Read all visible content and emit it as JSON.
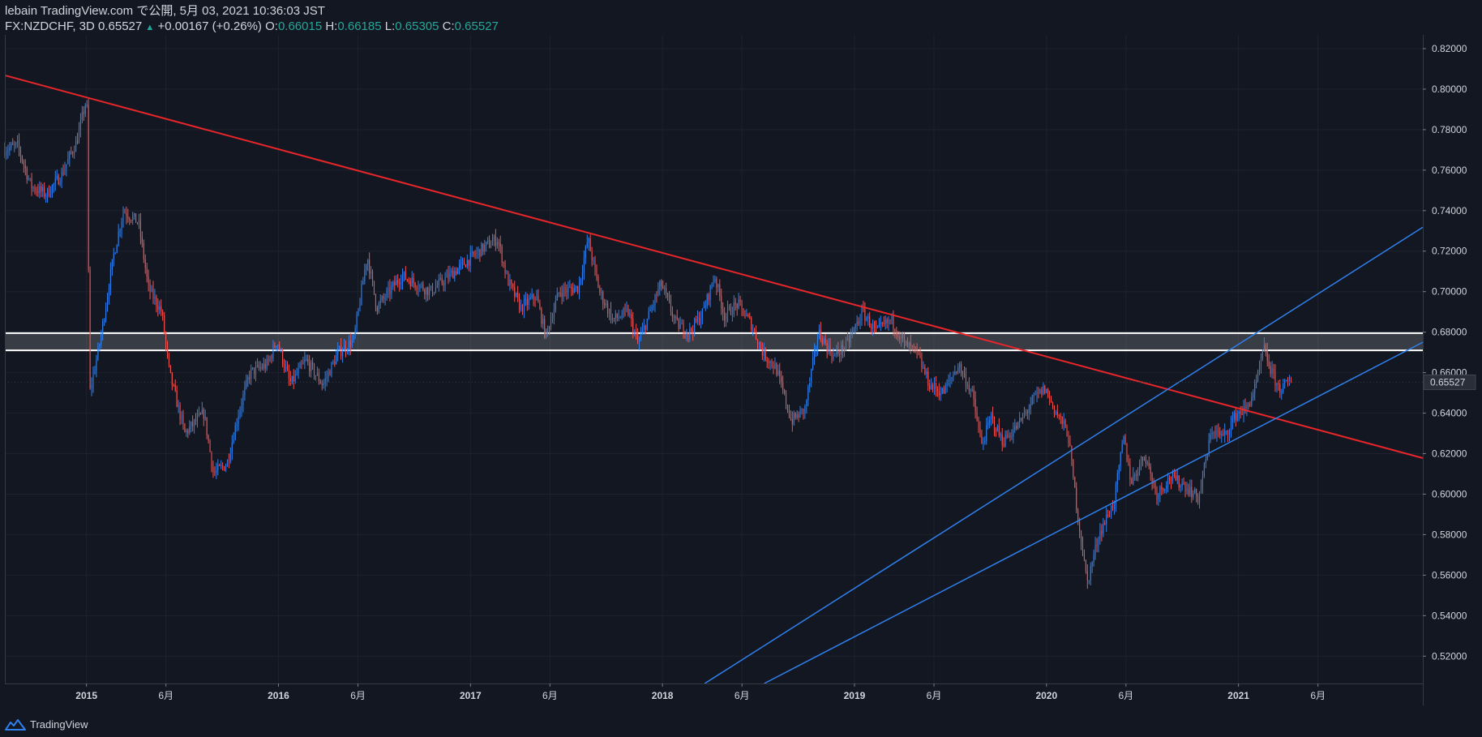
{
  "header": {
    "publish_line": "lebain TradingView.com で公開, 5月 03, 2021 10:36:03 JST",
    "symbol_tf": "FX:NZDCHF, 3D",
    "last": "0.65527",
    "change": "+0.00167 (+0.26%)",
    "o_label": "O:",
    "o_value": "0.66015",
    "h_label": "H:",
    "h_value": "0.66185",
    "l_label": "L:",
    "l_value": "0.65305",
    "c_label": "C:",
    "c_value": "0.65527"
  },
  "footer": {
    "brand": "TradingView"
  },
  "colors": {
    "background": "#131722",
    "up": "#2f80ed",
    "down": "#ef5350",
    "trendline": "#e8262a",
    "channel": "#2f80ed",
    "zone": "#ffffff",
    "grid": "#1e222d"
  },
  "chart_data": {
    "type": "candlestick",
    "y_ticks": [
      "0.82000",
      "0.80000",
      "0.78000",
      "0.76000",
      "0.74000",
      "0.72000",
      "0.70000",
      "0.68000",
      "0.66000",
      "0.64000",
      "0.62000",
      "0.60000",
      "0.58000",
      "0.56000",
      "0.54000",
      "0.52000"
    ],
    "x_ticks": [
      {
        "label": "2015",
        "t": 2015.0,
        "bold": true
      },
      {
        "label": "6月",
        "t": 2015.414
      },
      {
        "label": "2016",
        "t": 2016.0,
        "bold": true
      },
      {
        "label": "6月",
        "t": 2016.414
      },
      {
        "label": "2017",
        "t": 2017.0,
        "bold": true
      },
      {
        "label": "6月",
        "t": 2017.414
      },
      {
        "label": "2018",
        "t": 2018.0,
        "bold": true
      },
      {
        "label": "6月",
        "t": 2018.414
      },
      {
        "label": "2019",
        "t": 2019.0,
        "bold": true
      },
      {
        "label": "6月",
        "t": 2019.414
      },
      {
        "label": "2020",
        "t": 2020.0,
        "bold": true
      },
      {
        "label": "6月",
        "t": 2020.414
      },
      {
        "label": "2021",
        "t": 2021.0,
        "bold": true
      },
      {
        "label": "6月",
        "t": 2021.414
      }
    ],
    "x_range": [
      2014.575,
      2021.96
    ],
    "y_range": [
      0.5065,
      0.8268
    ],
    "last_price": {
      "value": 0.65527,
      "label": "0.65527"
    },
    "price_path": [
      [
        2014.575,
        0.77
      ],
      [
        2014.65,
        0.772
      ],
      [
        2014.72,
        0.752
      ],
      [
        2014.8,
        0.748
      ],
      [
        2014.88,
        0.758
      ],
      [
        2014.96,
        0.775
      ],
      [
        2015.01,
        0.796
      ],
      [
        2015.025,
        0.65
      ],
      [
        2015.08,
        0.676
      ],
      [
        2015.15,
        0.718
      ],
      [
        2015.2,
        0.74
      ],
      [
        2015.28,
        0.734
      ],
      [
        2015.33,
        0.702
      ],
      [
        2015.4,
        0.69
      ],
      [
        2015.44,
        0.66
      ],
      [
        2015.52,
        0.63
      ],
      [
        2015.62,
        0.64
      ],
      [
        2015.67,
        0.61
      ],
      [
        2015.74,
        0.615
      ],
      [
        2015.8,
        0.64
      ],
      [
        2015.86,
        0.66
      ],
      [
        2015.95,
        0.664
      ],
      [
        2016.0,
        0.676
      ],
      [
        2016.07,
        0.654
      ],
      [
        2016.15,
        0.666
      ],
      [
        2016.24,
        0.654
      ],
      [
        2016.32,
        0.67
      ],
      [
        2016.4,
        0.676
      ],
      [
        2016.47,
        0.718
      ],
      [
        2016.52,
        0.692
      ],
      [
        2016.65,
        0.708
      ],
      [
        2016.8,
        0.7
      ],
      [
        2016.95,
        0.712
      ],
      [
        2017.08,
        0.722
      ],
      [
        2017.15,
        0.726
      ],
      [
        2017.2,
        0.706
      ],
      [
        2017.27,
        0.692
      ],
      [
        2017.35,
        0.698
      ],
      [
        2017.4,
        0.678
      ],
      [
        2017.47,
        0.7
      ],
      [
        2017.57,
        0.702
      ],
      [
        2017.62,
        0.726
      ],
      [
        2017.68,
        0.7
      ],
      [
        2017.75,
        0.686
      ],
      [
        2017.83,
        0.69
      ],
      [
        2017.88,
        0.674
      ],
      [
        2018.0,
        0.704
      ],
      [
        2018.08,
        0.684
      ],
      [
        2018.15,
        0.68
      ],
      [
        2018.22,
        0.69
      ],
      [
        2018.28,
        0.708
      ],
      [
        2018.33,
        0.688
      ],
      [
        2018.4,
        0.694
      ],
      [
        2018.47,
        0.684
      ],
      [
        2018.53,
        0.67
      ],
      [
        2018.6,
        0.662
      ],
      [
        2018.68,
        0.636
      ],
      [
        2018.75,
        0.642
      ],
      [
        2018.82,
        0.68
      ],
      [
        2018.9,
        0.668
      ],
      [
        2018.97,
        0.674
      ],
      [
        2019.05,
        0.69
      ],
      [
        2019.12,
        0.68
      ],
      [
        2019.2,
        0.686
      ],
      [
        2019.27,
        0.674
      ],
      [
        2019.33,
        0.67
      ],
      [
        2019.4,
        0.654
      ],
      [
        2019.47,
        0.65
      ],
      [
        2019.55,
        0.664
      ],
      [
        2019.62,
        0.65
      ],
      [
        2019.67,
        0.624
      ],
      [
        2019.72,
        0.638
      ],
      [
        2019.78,
        0.626
      ],
      [
        2019.86,
        0.634
      ],
      [
        2019.95,
        0.648
      ],
      [
        2020.0,
        0.652
      ],
      [
        2020.05,
        0.642
      ],
      [
        2020.12,
        0.63
      ],
      [
        2020.17,
        0.59
      ],
      [
        2020.22,
        0.556
      ],
      [
        2020.28,
        0.58
      ],
      [
        2020.36,
        0.596
      ],
      [
        2020.41,
        0.628
      ],
      [
        2020.45,
        0.606
      ],
      [
        2020.52,
        0.62
      ],
      [
        2020.58,
        0.6
      ],
      [
        2020.65,
        0.608
      ],
      [
        2020.72,
        0.605
      ],
      [
        2020.8,
        0.598
      ],
      [
        2020.87,
        0.632
      ],
      [
        2020.93,
        0.628
      ],
      [
        2021.0,
        0.64
      ],
      [
        2021.05,
        0.642
      ],
      [
        2021.1,
        0.654
      ],
      [
        2021.14,
        0.672
      ],
      [
        2021.18,
        0.66
      ],
      [
        2021.22,
        0.652
      ],
      [
        2021.28,
        0.655
      ]
    ],
    "lines": {
      "resistance_trendline": [
        [
          2014.575,
          0.8068
        ],
        [
          2021.96,
          0.6178
        ]
      ],
      "channel_upper": [
        [
          2018.22,
          0.5065
        ],
        [
          2021.96,
          0.7318
        ]
      ],
      "channel_lower": [
        [
          2018.53,
          0.5065
        ],
        [
          2021.96,
          0.675
        ]
      ],
      "zone_top": 0.6795,
      "zone_bottom": 0.671
    }
  }
}
